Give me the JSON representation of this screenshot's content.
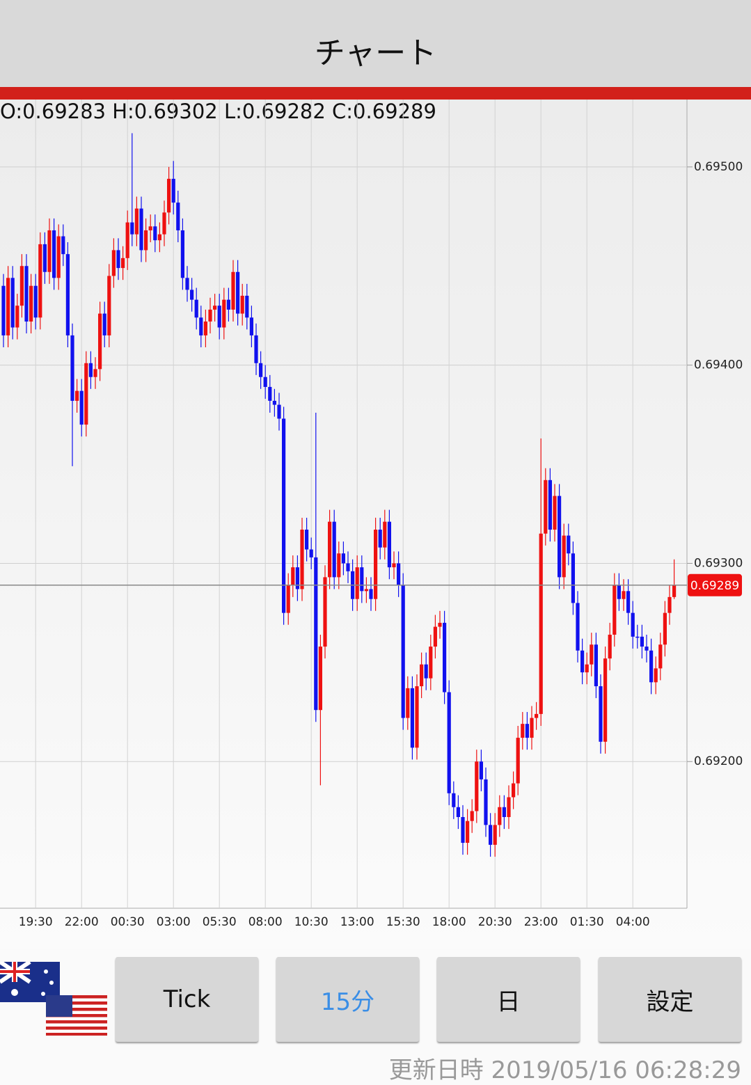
{
  "header": {
    "title": "チャート"
  },
  "chart_data": {
    "type": "candlestick",
    "ohlc_text": "O:0.69283 H:0.69302 L:0.69282 C:0.69289",
    "categories": [
      null,
      null,
      null,
      null,
      null,
      null,
      null,
      "19:30",
      null,
      null,
      null,
      null,
      null,
      null,
      null,
      null,
      null,
      "22:00",
      null,
      null,
      null,
      null,
      null,
      null,
      null,
      null,
      null,
      "00:30",
      null,
      null,
      null,
      null,
      null,
      null,
      null,
      null,
      null,
      "03:00",
      null,
      null,
      null,
      null,
      null,
      null,
      null,
      null,
      null,
      "05:30",
      null,
      null,
      null,
      null,
      null,
      null,
      null,
      null,
      null,
      "08:00",
      null,
      null,
      null,
      null,
      null,
      null,
      null,
      null,
      null,
      "10:30",
      null,
      null,
      null,
      null,
      null,
      null,
      null,
      null,
      null,
      "13:00",
      null,
      null,
      null,
      null,
      null,
      null,
      null,
      null,
      null,
      "15:30",
      null,
      null,
      null,
      null,
      null,
      null,
      null,
      null,
      null,
      "18:00",
      null,
      null,
      null,
      null,
      null,
      null,
      null,
      null,
      null,
      "20:30",
      null,
      null,
      null,
      null,
      null,
      null,
      null,
      null,
      null,
      "23:00",
      null,
      null,
      null,
      null,
      null,
      null,
      null,
      null,
      null,
      "01:30",
      null,
      null,
      null,
      null,
      null,
      null,
      null,
      null,
      null,
      "04:00",
      null,
      null,
      null,
      null,
      null,
      null,
      null,
      null,
      null
    ],
    "open": [
      0.6944,
      0.69415,
      0.69444,
      0.69419,
      0.6943,
      0.6945,
      0.69422,
      0.6944,
      0.69424,
      0.69461,
      0.69447,
      0.69468,
      0.69444,
      0.69465,
      0.69456,
      0.69415,
      0.69382,
      0.69387,
      0.6937,
      0.69401,
      0.69394,
      0.69398,
      0.69426,
      0.69415,
      0.69445,
      0.69458,
      0.69449,
      0.69454,
      0.69472,
      0.69466,
      0.69479,
      0.69458,
      0.69468,
      0.6947,
      0.69463,
      0.69466,
      0.69477,
      0.69494,
      0.69482,
      0.69468,
      0.69444,
      0.69438,
      0.69433,
      0.69424,
      0.69415,
      0.69422,
      0.69428,
      0.6943,
      0.69419,
      0.69433,
      0.69428,
      0.69447,
      0.69426,
      0.69435,
      0.69424,
      0.69415,
      0.69401,
      0.69394,
      0.69389,
      0.69382,
      0.6938,
      0.69373,
      0.69275,
      0.69289,
      0.69298,
      0.69287,
      0.69317,
      0.69307,
      0.69303,
      0.69226,
      0.69258,
      0.69293,
      0.69321,
      0.69293,
      0.69305,
      0.693,
      0.69296,
      0.69282,
      0.69298,
      0.69286,
      0.69287,
      0.69282,
      0.69317,
      0.69308,
      0.69321,
      0.69298,
      0.693,
      0.69289,
      0.69222,
      0.69237,
      0.69207,
      0.69238,
      0.69249,
      0.69242,
      0.69258,
      0.69268,
      0.6927,
      0.69235,
      0.69184,
      0.69177,
      0.69172,
      0.69159,
      0.6917,
      0.69175,
      0.692,
      0.69191,
      0.69168,
      0.69158,
      0.69168,
      0.69177,
      0.69172,
      0.69182,
      0.69189,
      0.69212,
      0.69219,
      0.69212,
      0.69222,
      0.69224,
      0.69315,
      0.69342,
      0.69317,
      0.69334,
      0.69293,
      0.69314,
      0.69305,
      0.6928,
      0.69256,
      0.69245,
      0.69249,
      0.69259,
      0.69238,
      0.6921,
      0.69252,
      0.69264,
      0.69289,
      0.69282,
      0.69286,
      0.69275,
      0.69263,
      0.69263,
      0.69258,
      0.69256,
      0.6924,
      0.69247,
      0.69259,
      0.69275,
      0.69283
    ],
    "high": [
      0.69446,
      0.6945,
      0.6945,
      0.69436,
      0.69456,
      0.69456,
      0.69446,
      0.69446,
      0.69467,
      0.69467,
      0.69474,
      0.69474,
      0.69471,
      0.69471,
      0.69462,
      0.69421,
      0.69393,
      0.69393,
      0.69407,
      0.69407,
      0.69404,
      0.69432,
      0.69432,
      0.69451,
      0.69464,
      0.69464,
      0.6946,
      0.69478,
      0.69517,
      0.69485,
      0.69485,
      0.69474,
      0.69476,
      0.69476,
      0.69472,
      0.69483,
      0.695,
      0.69503,
      0.69488,
      0.69474,
      0.6945,
      0.69444,
      0.69439,
      0.6943,
      0.69428,
      0.69434,
      0.69436,
      0.69436,
      0.69439,
      0.69439,
      0.69453,
      0.69453,
      0.69441,
      0.69441,
      0.6943,
      0.69421,
      0.69407,
      0.694,
      0.69395,
      0.69388,
      0.69386,
      0.69379,
      0.69295,
      0.69304,
      0.69304,
      0.69323,
      0.69323,
      0.69313,
      0.69376,
      0.69264,
      0.69299,
      0.69327,
      0.69327,
      0.69311,
      0.69311,
      0.69306,
      0.69302,
      0.69304,
      0.69304,
      0.69293,
      0.69293,
      0.69323,
      0.69323,
      0.69327,
      0.69327,
      0.69306,
      0.69306,
      0.69295,
      0.69243,
      0.69243,
      0.69244,
      0.69255,
      0.69255,
      0.69264,
      0.69274,
      0.69276,
      0.69276,
      0.69241,
      0.6919,
      0.69183,
      0.69178,
      0.69176,
      0.69181,
      0.69206,
      0.69206,
      0.69197,
      0.69174,
      0.69174,
      0.69183,
      0.69183,
      0.69188,
      0.69195,
      0.69218,
      0.69225,
      0.69225,
      0.69228,
      0.6923,
      0.69363,
      0.69348,
      0.69348,
      0.6934,
      0.6934,
      0.6932,
      0.6932,
      0.69311,
      0.69286,
      0.69262,
      0.69255,
      0.69265,
      0.69265,
      0.69244,
      0.69258,
      0.6927,
      0.69295,
      0.69295,
      0.69292,
      0.69292,
      0.69281,
      0.69269,
      0.69269,
      0.69264,
      0.69262,
      0.69253,
      0.69265,
      0.69281,
      0.69289,
      0.69302
    ],
    "low": [
      0.69409,
      0.69409,
      0.69413,
      0.69413,
      0.69424,
      0.69416,
      0.69416,
      0.69418,
      0.69418,
      0.69441,
      0.69441,
      0.69438,
      0.69438,
      0.6945,
      0.69409,
      0.69349,
      0.69376,
      0.69364,
      0.69364,
      0.69388,
      0.69388,
      0.69392,
      0.69409,
      0.69409,
      0.69439,
      0.69443,
      0.69443,
      0.69448,
      0.6946,
      0.6946,
      0.69452,
      0.69452,
      0.69462,
      0.69457,
      0.69457,
      0.6946,
      0.69471,
      0.69476,
      0.69462,
      0.69438,
      0.69432,
      0.69427,
      0.69418,
      0.69409,
      0.69409,
      0.69416,
      0.69422,
      0.69413,
      0.69413,
      0.69422,
      0.69422,
      0.6942,
      0.6942,
      0.69418,
      0.69409,
      0.69395,
      0.69388,
      0.69383,
      0.69376,
      0.69374,
      0.69367,
      0.69269,
      0.69269,
      0.69283,
      0.69281,
      0.69281,
      0.69301,
      0.69297,
      0.6922,
      0.69188,
      0.69252,
      0.69287,
      0.69287,
      0.69287,
      0.69294,
      0.6929,
      0.69276,
      0.69276,
      0.6928,
      0.6928,
      0.69276,
      0.69276,
      0.69302,
      0.69302,
      0.69292,
      0.69292,
      0.69283,
      0.69216,
      0.69216,
      0.69201,
      0.69201,
      0.69232,
      0.69236,
      0.69236,
      0.69252,
      0.69262,
      0.69229,
      0.69178,
      0.69171,
      0.69166,
      0.69153,
      0.69153,
      0.69164,
      0.69169,
      0.69185,
      0.69162,
      0.69152,
      0.69152,
      0.69162,
      0.69166,
      0.69166,
      0.69176,
      0.69183,
      0.69206,
      0.69206,
      0.69206,
      0.69216,
      0.69218,
      0.69309,
      0.69311,
      0.69311,
      0.69287,
      0.69287,
      0.69299,
      0.69274,
      0.6925,
      0.69239,
      0.69239,
      0.69243,
      0.69232,
      0.69204,
      0.69204,
      0.69246,
      0.69258,
      0.69276,
      0.69276,
      0.69269,
      0.69257,
      0.69257,
      0.69252,
      0.6925,
      0.69234,
      0.69234,
      0.69241,
      0.69253,
      0.69269,
      0.69282
    ],
    "close": [
      0.69415,
      0.69444,
      0.69419,
      0.6943,
      0.6945,
      0.69422,
      0.6944,
      0.69424,
      0.69461,
      0.69447,
      0.69468,
      0.69444,
      0.69465,
      0.69456,
      0.69415,
      0.69382,
      0.69387,
      0.6937,
      0.69401,
      0.69394,
      0.69398,
      0.69426,
      0.69415,
      0.69445,
      0.69458,
      0.69449,
      0.69454,
      0.69472,
      0.69466,
      0.69479,
      0.69458,
      0.69468,
      0.6947,
      0.69463,
      0.69466,
      0.69477,
      0.69494,
      0.69482,
      0.69468,
      0.69444,
      0.69438,
      0.69433,
      0.69424,
      0.69415,
      0.69422,
      0.69428,
      0.6943,
      0.69419,
      0.69433,
      0.69428,
      0.69447,
      0.69426,
      0.69435,
      0.69424,
      0.69415,
      0.69401,
      0.69394,
      0.69389,
      0.69382,
      0.6938,
      0.69373,
      0.69275,
      0.69289,
      0.69298,
      0.69287,
      0.69317,
      0.69307,
      0.69303,
      0.69226,
      0.69258,
      0.69293,
      0.69321,
      0.69293,
      0.69305,
      0.693,
      0.69296,
      0.69282,
      0.69298,
      0.69286,
      0.69287,
      0.69282,
      0.69317,
      0.69308,
      0.69321,
      0.69298,
      0.693,
      0.69289,
      0.69222,
      0.69237,
      0.69207,
      0.69238,
      0.69249,
      0.69242,
      0.69258,
      0.69268,
      0.6927,
      0.69235,
      0.69184,
      0.69177,
      0.69172,
      0.69159,
      0.6917,
      0.69175,
      0.692,
      0.69191,
      0.69168,
      0.69158,
      0.69168,
      0.69177,
      0.69172,
      0.69182,
      0.69189,
      0.69212,
      0.69219,
      0.69212,
      0.69222,
      0.69224,
      0.69315,
      0.69342,
      0.69317,
      0.69334,
      0.69293,
      0.69314,
      0.69305,
      0.6928,
      0.69256,
      0.69245,
      0.69249,
      0.69259,
      0.69238,
      0.6921,
      0.69252,
      0.69264,
      0.69289,
      0.69282,
      0.69286,
      0.69275,
      0.69263,
      0.69263,
      0.69258,
      0.69256,
      0.6924,
      0.69247,
      0.69259,
      0.69275,
      0.69283,
      0.69289
    ],
    "up_color": "#ee1111",
    "down_color": "#1111ee",
    "ylim": [
      0.69126,
      0.69534
    ],
    "yticks": [
      {
        "value": 0.692,
        "label": "0.69200"
      },
      {
        "value": 0.693,
        "label": "0.69300"
      },
      {
        "value": 0.694,
        "label": "0.69400"
      },
      {
        "value": 0.695,
        "label": "0.69500"
      }
    ],
    "grid": true
  },
  "buttons": [
    "Tick",
    "15分",
    "日",
    "設定"
  ],
  "footer": {
    "updated": "更新日時 2019/05/16 06:28:29"
  }
}
